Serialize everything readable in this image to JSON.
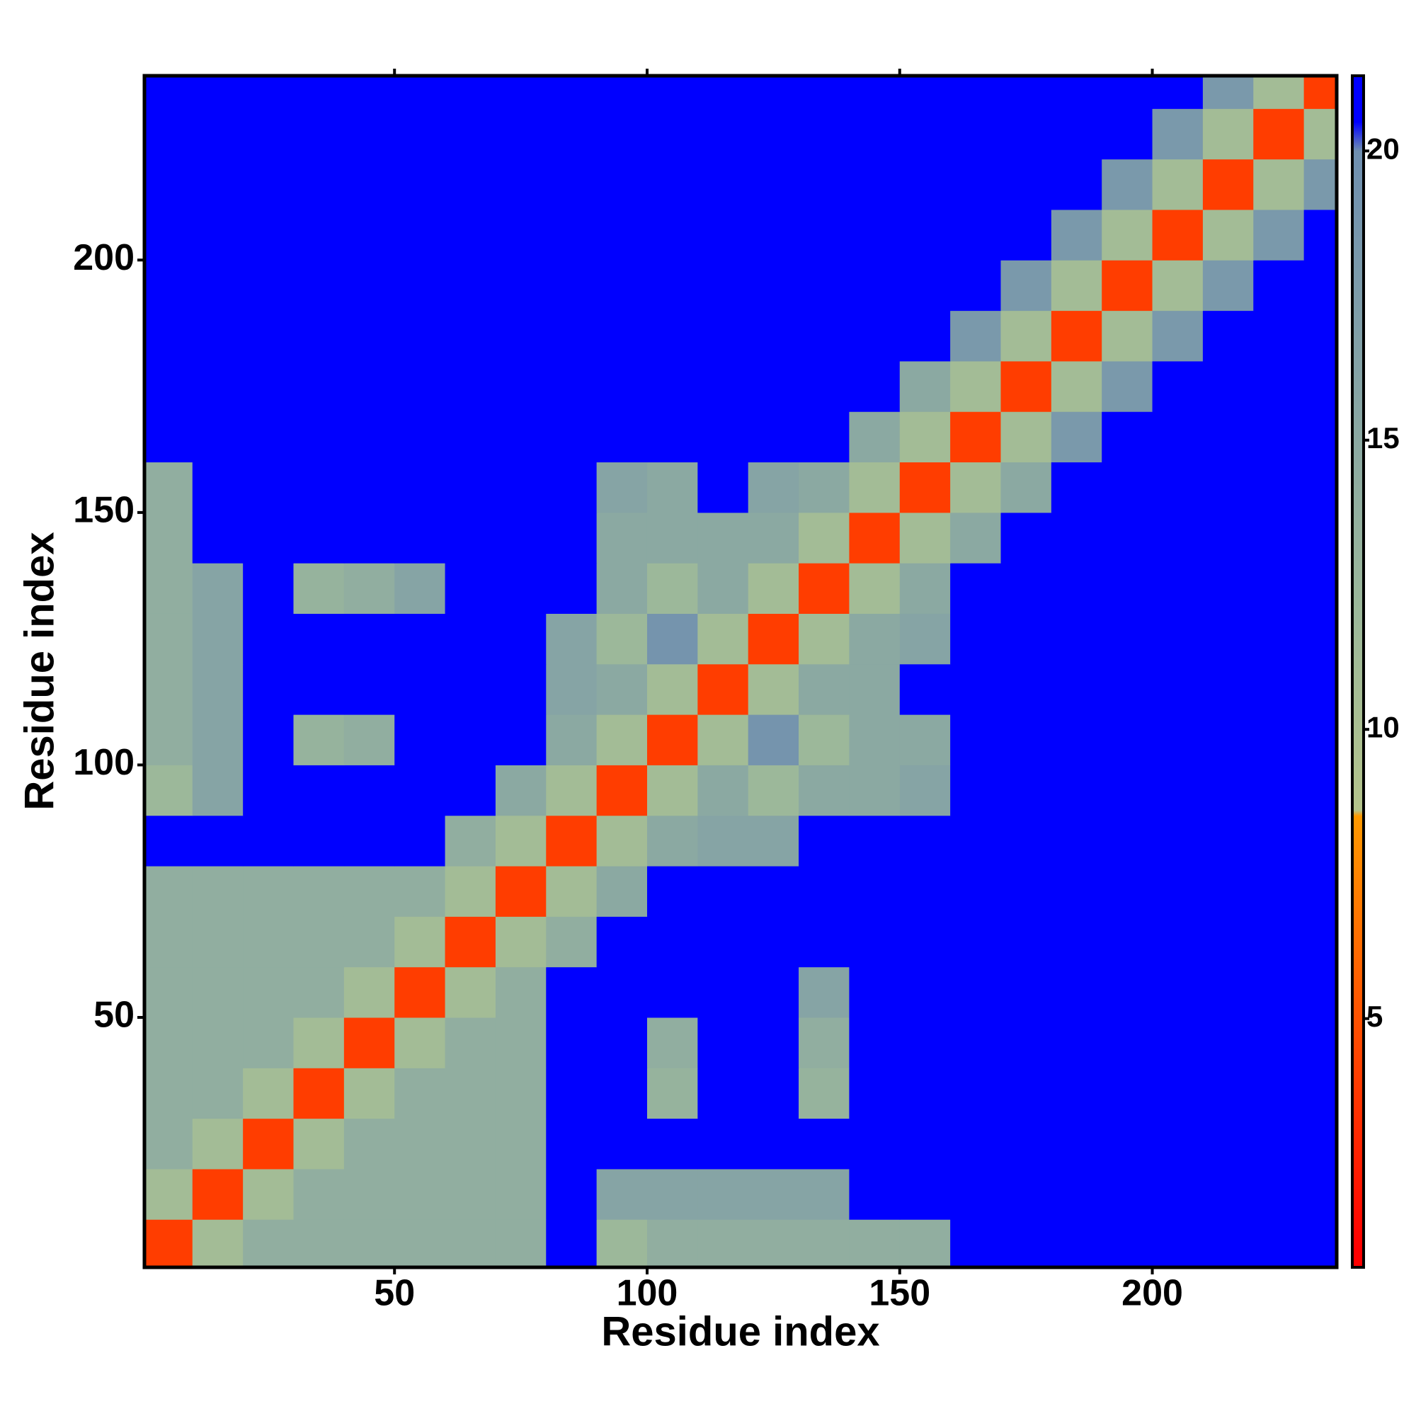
{
  "chart_data": {
    "type": "heatmap",
    "x_label": "Residue index",
    "y_label": "Residue index",
    "x": [
      5,
      15,
      25,
      35,
      45,
      55,
      65,
      75,
      85,
      95,
      105,
      115,
      125,
      135,
      145,
      155,
      165,
      175,
      185,
      195,
      205,
      215,
      225,
      235
    ],
    "y": [
      5,
      15,
      25,
      35,
      45,
      55,
      65,
      75,
      85,
      95,
      105,
      115,
      125,
      135,
      145,
      155,
      165,
      175,
      185,
      195,
      205,
      215,
      225,
      235
    ],
    "z": [
      [
        4,
        11,
        14,
        14,
        14,
        14,
        14,
        14,
        21,
        12,
        14,
        14,
        14,
        14,
        14,
        14,
        21,
        21,
        21,
        21,
        21,
        21,
        21,
        21
      ],
      [
        11,
        4,
        11,
        14,
        14,
        14,
        14,
        14,
        21,
        16,
        16,
        16,
        16,
        16,
        21,
        21,
        21,
        21,
        21,
        21,
        21,
        21,
        21,
        21
      ],
      [
        14,
        11,
        4,
        11,
        14,
        14,
        14,
        14,
        21,
        21,
        21,
        21,
        21,
        21,
        21,
        21,
        21,
        21,
        21,
        21,
        21,
        21,
        21,
        21
      ],
      [
        14,
        14,
        11,
        4,
        11,
        14,
        14,
        14,
        21,
        21,
        13,
        21,
        21,
        13,
        21,
        21,
        21,
        21,
        21,
        21,
        21,
        21,
        21,
        21
      ],
      [
        14,
        14,
        14,
        11,
        4,
        11,
        14,
        14,
        21,
        21,
        14,
        21,
        21,
        14,
        21,
        21,
        21,
        21,
        21,
        21,
        21,
        21,
        21,
        21
      ],
      [
        14,
        14,
        14,
        14,
        11,
        4,
        11,
        14,
        21,
        21,
        21,
        21,
        21,
        16,
        21,
        21,
        21,
        21,
        21,
        21,
        21,
        21,
        21,
        21
      ],
      [
        14,
        14,
        14,
        14,
        14,
        11,
        4,
        11,
        14,
        21,
        21,
        21,
        21,
        21,
        21,
        21,
        21,
        21,
        21,
        21,
        21,
        21,
        21,
        21
      ],
      [
        14,
        14,
        14,
        14,
        14,
        14,
        11,
        4,
        11,
        15,
        21,
        21,
        21,
        21,
        21,
        21,
        21,
        21,
        21,
        21,
        21,
        21,
        21,
        21
      ],
      [
        21,
        21,
        21,
        21,
        21,
        21,
        14,
        11,
        4,
        11,
        15,
        16,
        16,
        21,
        21,
        21,
        21,
        21,
        21,
        21,
        21,
        21,
        21,
        21
      ],
      [
        12,
        16,
        21,
        21,
        21,
        21,
        21,
        15,
        11,
        4,
        11,
        15,
        12,
        15,
        15,
        16,
        21,
        21,
        21,
        21,
        21,
        21,
        21,
        21
      ],
      [
        14,
        16,
        21,
        13,
        14,
        21,
        21,
        21,
        15,
        11,
        4,
        11,
        19,
        12,
        15,
        15,
        21,
        21,
        21,
        21,
        21,
        21,
        21,
        21
      ],
      [
        14,
        16,
        21,
        21,
        21,
        21,
        21,
        21,
        16,
        15,
        11,
        4,
        11,
        15,
        15,
        21,
        21,
        21,
        21,
        21,
        21,
        21,
        21,
        21
      ],
      [
        14,
        16,
        21,
        21,
        21,
        21,
        21,
        21,
        16,
        12,
        19,
        11,
        4,
        11,
        15,
        16,
        21,
        21,
        21,
        21,
        21,
        21,
        21,
        21
      ],
      [
        14,
        16,
        21,
        13,
        14,
        16,
        21,
        21,
        21,
        15,
        12,
        15,
        11,
        4,
        11,
        15,
        21,
        21,
        21,
        21,
        21,
        21,
        21,
        21
      ],
      [
        14,
        21,
        21,
        21,
        21,
        21,
        21,
        21,
        21,
        15,
        15,
        15,
        15,
        11,
        4,
        11,
        15,
        21,
        21,
        21,
        21,
        21,
        21,
        21
      ],
      [
        14,
        21,
        21,
        21,
        21,
        21,
        21,
        21,
        21,
        16,
        15,
        21,
        16,
        15,
        11,
        4,
        11,
        15,
        21,
        21,
        21,
        21,
        21,
        21
      ],
      [
        21,
        21,
        21,
        21,
        21,
        21,
        21,
        21,
        21,
        21,
        21,
        21,
        21,
        21,
        15,
        11,
        4,
        11,
        18,
        21,
        21,
        21,
        21,
        21
      ],
      [
        21,
        21,
        21,
        21,
        21,
        21,
        21,
        21,
        21,
        21,
        21,
        21,
        21,
        21,
        21,
        15,
        11,
        4,
        11,
        18,
        21,
        21,
        21,
        21
      ],
      [
        21,
        21,
        21,
        21,
        21,
        21,
        21,
        21,
        21,
        21,
        21,
        21,
        21,
        21,
        21,
        21,
        18,
        11,
        4,
        11,
        18,
        21,
        21,
        21
      ],
      [
        21,
        21,
        21,
        21,
        21,
        21,
        21,
        21,
        21,
        21,
        21,
        21,
        21,
        21,
        21,
        21,
        21,
        18,
        11,
        4,
        11,
        18,
        21,
        21
      ],
      [
        21,
        21,
        21,
        21,
        21,
        21,
        21,
        21,
        21,
        21,
        21,
        21,
        21,
        21,
        21,
        21,
        21,
        21,
        18,
        11,
        4,
        11,
        18,
        21
      ],
      [
        21,
        21,
        21,
        21,
        21,
        21,
        21,
        21,
        21,
        21,
        21,
        21,
        21,
        21,
        21,
        21,
        21,
        21,
        21,
        18,
        11,
        4,
        11,
        18
      ],
      [
        21,
        21,
        21,
        21,
        21,
        21,
        21,
        21,
        21,
        21,
        21,
        21,
        21,
        21,
        21,
        21,
        21,
        21,
        21,
        21,
        18,
        11,
        4,
        11
      ],
      [
        21,
        21,
        21,
        21,
        21,
        21,
        21,
        21,
        21,
        21,
        21,
        21,
        21,
        21,
        21,
        21,
        21,
        21,
        21,
        21,
        21,
        18,
        11,
        4
      ]
    ],
    "xlim": [
      0.5,
      236.5
    ],
    "ylim": [
      0.5,
      236.5
    ],
    "xticks": [
      50,
      100,
      150,
      200
    ],
    "yticks": [
      50,
      100,
      150,
      200
    ],
    "clim": [
      0.7,
      21.3
    ],
    "cticks": [
      5,
      10,
      15,
      20
    ],
    "colorscale": [
      {
        "value": 1,
        "color": "#ff0000"
      },
      {
        "value": 8.5,
        "color": "#ff9900"
      },
      {
        "value": 8.6,
        "color": "#b4c48c"
      },
      {
        "value": 12,
        "color": "#9cb89a"
      },
      {
        "value": 20,
        "color": "#6f8fb0"
      },
      {
        "value": 20.5,
        "color": "#0000ff"
      }
    ]
  }
}
